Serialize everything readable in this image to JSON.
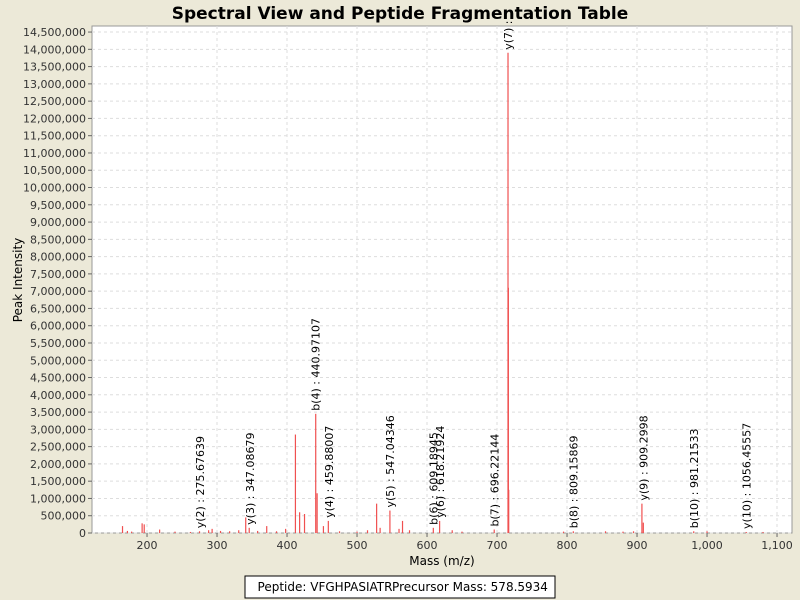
{
  "chart_data": {
    "type": "stem",
    "title": "Spectral View and Peptide Fragmentation Table",
    "x_label": "Mass (m/z)",
    "y_label": "Peak Intensity",
    "color": "#f05050",
    "grid": true,
    "xlim": [
      121.4,
      1121.4
    ],
    "ylim": [
      0,
      14675000
    ],
    "xticks": [
      200,
      300,
      400,
      500,
      600,
      700,
      800,
      900,
      {
        "value": 1000,
        "label": "1,000"
      },
      {
        "value": 1100,
        "label": "1,100"
      }
    ],
    "yticks": [
      {
        "value": 0,
        "label": "0"
      },
      {
        "value": 500000,
        "label": "500,000"
      },
      {
        "value": 1000000,
        "label": "1,000,000"
      },
      {
        "value": 1500000,
        "label": "1,500,000"
      },
      {
        "value": 2000000,
        "label": "2,000,000"
      },
      {
        "value": 2500000,
        "label": "2,500,000"
      },
      {
        "value": 3000000,
        "label": "3,000,000"
      },
      {
        "value": 3500000,
        "label": "3,500,000"
      },
      {
        "value": 4000000,
        "label": "4,000,000"
      },
      {
        "value": 4500000,
        "label": "4,500,000"
      },
      {
        "value": 5000000,
        "label": "5,000,000"
      },
      {
        "value": 5500000,
        "label": "5,500,000"
      },
      {
        "value": 6000000,
        "label": "6,000,000"
      },
      {
        "value": 6500000,
        "label": "6,500,000"
      },
      {
        "value": 7000000,
        "label": "7,000,000"
      },
      {
        "value": 7500000,
        "label": "7,500,000"
      },
      {
        "value": 8000000,
        "label": "8,000,000"
      },
      {
        "value": 8500000,
        "label": "8,500,000"
      },
      {
        "value": 9000000,
        "label": "9,000,000"
      },
      {
        "value": 9500000,
        "label": "9,500,000"
      },
      {
        "value": 10000000,
        "label": "10,000,000"
      },
      {
        "value": 10500000,
        "label": "10,500,000"
      },
      {
        "value": 11000000,
        "label": "11,000,000"
      },
      {
        "value": 11500000,
        "label": "11,500,000"
      },
      {
        "value": 12000000,
        "label": "12,000,000"
      },
      {
        "value": 12500000,
        "label": "12,500,000"
      },
      {
        "value": 13000000,
        "label": "13,000,000"
      },
      {
        "value": 13500000,
        "label": "13,500,000"
      },
      {
        "value": 14000000,
        "label": "14,000,000"
      },
      {
        "value": 14500000,
        "label": "14,500,000"
      }
    ],
    "x": [
      165,
      172,
      178,
      193,
      196,
      218,
      240,
      262,
      275,
      288,
      293,
      305,
      318,
      331,
      341,
      346,
      358,
      371,
      385,
      398,
      412,
      418,
      425,
      441,
      443,
      452,
      459,
      475,
      500,
      515,
      528,
      533,
      547,
      560,
      565,
      575,
      609,
      618,
      636,
      650,
      696,
      715.7,
      716.2,
      716.7,
      795,
      809,
      855,
      880,
      895,
      907,
      909,
      981,
      1000,
      1056,
      1080
    ],
    "values": [
      200000,
      60000,
      40000,
      280000,
      250000,
      100000,
      40000,
      30000,
      50000,
      80000,
      120000,
      60000,
      50000,
      80000,
      450000,
      150000,
      60000,
      200000,
      50000,
      120000,
      2850000,
      600000,
      550000,
      3450000,
      1150000,
      200000,
      350000,
      50000,
      40000,
      80000,
      850000,
      150000,
      650000,
      120000,
      350000,
      80000,
      150000,
      350000,
      80000,
      40000,
      100000,
      13900000,
      7100000,
      1250000,
      40000,
      50000,
      50000,
      40000,
      50000,
      850000,
      300000,
      50000,
      50000,
      30000,
      30000
    ],
    "annotations": [
      {
        "text": "y(2) : 275.67639",
        "x": 275.7,
        "y": 50000
      },
      {
        "text": "y(3) : 347.08679",
        "x": 347.1,
        "y": 150000
      },
      {
        "text": "b(4) : 440.97107",
        "x": 441,
        "y": 3450000
      },
      {
        "text": "y(4) : 459.88007",
        "x": 459.9,
        "y": 350000
      },
      {
        "text": "y(5) : 547.04346",
        "x": 547,
        "y": 650000
      },
      {
        "text": "b(6) : 609.18945",
        "x": 609.2,
        "y": 150000
      },
      {
        "text": "y(6) : 618.21924",
        "x": 618.2,
        "y": 350000
      },
      {
        "text": "b(7) : 696.22144",
        "x": 696.2,
        "y": 100000
      },
      {
        "text": "y(7) :",
        "x": 715.7,
        "y": 13900000
      },
      {
        "text": "b(8) : 809.15869",
        "x": 809.2,
        "y": 50000
      },
      {
        "text": "y(9) : 909.2998",
        "x": 909.3,
        "y": 850000
      },
      {
        "text": "b(10) : 981.21533",
        "x": 981.2,
        "y": 50000
      },
      {
        "text": "y(10) : 1056.45557",
        "x": 1056.5,
        "y": 30000
      }
    ],
    "peptide": "Peptide: VFGHPASIATR",
    "precursor": "Precursor Mass: 578.5934"
  }
}
